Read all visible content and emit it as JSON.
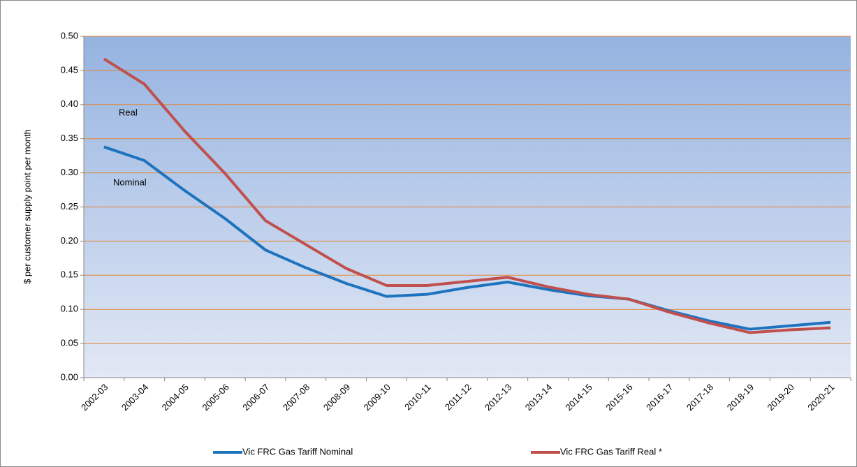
{
  "chart_data": {
    "type": "line",
    "y_label": "$ per customer supply point per month",
    "categories": [
      "2002-03",
      "2003-04",
      "2004-05",
      "2005-06",
      "2006-07",
      "2007-08",
      "2008-09",
      "2009-10",
      "2010-11",
      "2011-12",
      "2012-13",
      "2013-14",
      "2014-15",
      "2015-16",
      "2016-17",
      "2017-18",
      "2018-19",
      "2019-20",
      "2020-21"
    ],
    "series": [
      {
        "name": "Vic FRC Gas Tariff Nominal",
        "color": "#1e73be",
        "values": [
          0.338,
          0.318,
          0.274,
          0.233,
          0.187,
          0.161,
          0.138,
          0.119,
          0.122,
          0.132,
          0.14,
          0.129,
          0.12,
          0.115,
          0.098,
          0.083,
          0.071,
          0.076,
          0.081
        ]
      },
      {
        "name": "Vic FRC Gas Tariff Real *",
        "color": "#c0504d",
        "values": [
          0.467,
          0.43,
          0.361,
          0.299,
          0.23,
          0.195,
          0.16,
          0.135,
          0.135,
          0.141,
          0.147,
          0.133,
          0.122,
          0.115,
          0.096,
          0.08,
          0.066,
          0.07,
          0.073
        ]
      }
    ],
    "annotations": [
      "Real",
      "Nominal"
    ],
    "ylim": [
      0,
      0.5
    ],
    "yticks": [
      {
        "value": 0,
        "label": "0.00"
      },
      {
        "value": 0.05,
        "label": "0.05"
      },
      {
        "value": 0.1,
        "label": "0.10"
      },
      {
        "value": 0.15,
        "label": "0.15"
      },
      {
        "value": 0.2,
        "label": "0.20"
      },
      {
        "value": 0.25,
        "label": "0.25"
      },
      {
        "value": 0.3,
        "label": "0.30"
      },
      {
        "value": 0.35,
        "label": "0.35"
      },
      {
        "value": 0.4,
        "label": "0.40"
      },
      {
        "value": 0.45,
        "label": "0.45"
      },
      {
        "value": 0.5,
        "label": "0.50"
      }
    ],
    "grid": true,
    "legend": "bottom"
  }
}
